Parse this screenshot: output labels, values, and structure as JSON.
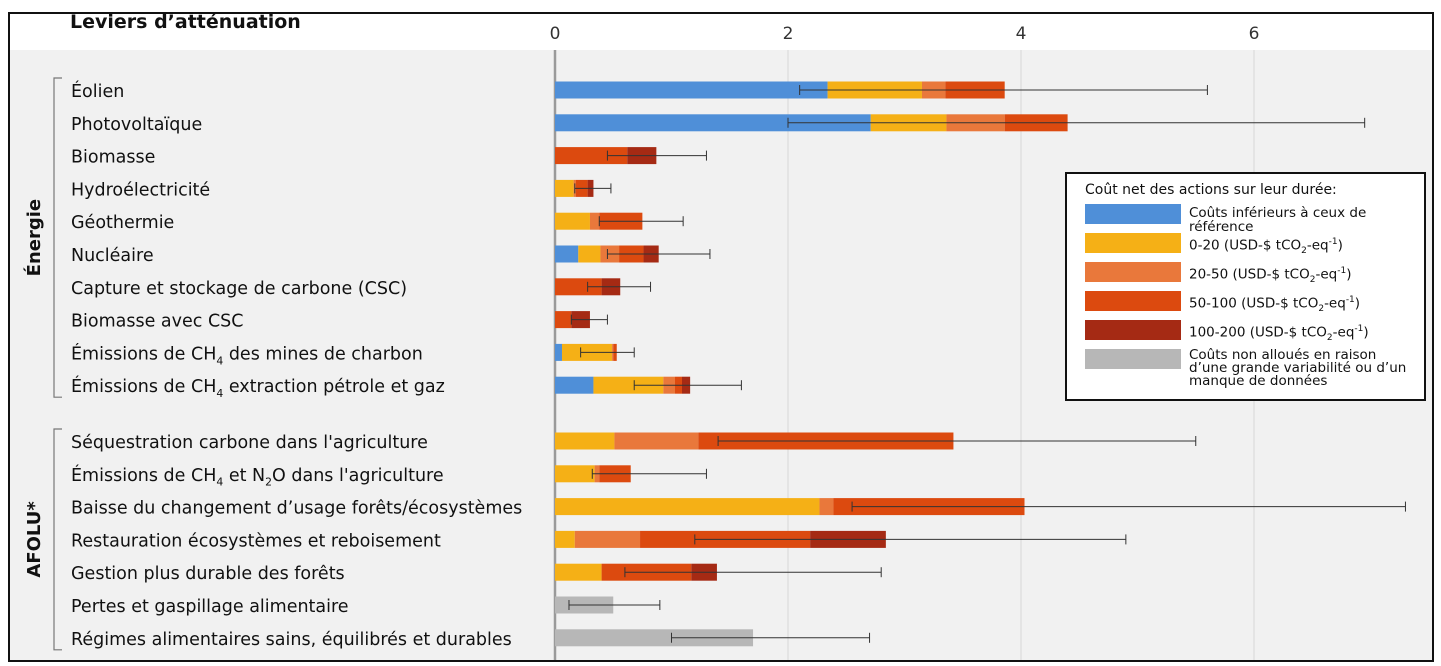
{
  "chart_data": {
    "type": "bar",
    "stacked": true,
    "orientation": "horizontal",
    "title": "Leviers d’atténuation",
    "xlim": [
      0,
      7
    ],
    "x_ticks": [
      "0",
      "2",
      "4",
      "6"
    ],
    "grid": true,
    "groups": [
      {
        "label": "Énergie",
        "first": 0,
        "last": 9
      },
      {
        "label": "AFOLU*",
        "first": 10,
        "last": 16
      }
    ],
    "categories": [
      {
        "parts": [
          {
            "t": "Éolien"
          }
        ]
      },
      {
        "parts": [
          {
            "t": "Photovoltaïque"
          }
        ]
      },
      {
        "parts": [
          {
            "t": "Biomasse"
          }
        ]
      },
      {
        "parts": [
          {
            "t": "Hydroélectricité"
          }
        ]
      },
      {
        "parts": [
          {
            "t": "Géothermie"
          }
        ]
      },
      {
        "parts": [
          {
            "t": "Nucléaire"
          }
        ]
      },
      {
        "parts": [
          {
            "t": "Capture et stockage de carbone (CSC)"
          }
        ]
      },
      {
        "parts": [
          {
            "t": "Biomasse avec CSC"
          }
        ]
      },
      {
        "parts": [
          {
            "t": "Émissions de CH"
          },
          {
            "sub": "4"
          },
          {
            "t": " des mines de charbon"
          }
        ]
      },
      {
        "parts": [
          {
            "t": "Émissions de CH"
          },
          {
            "sub": "4"
          },
          {
            "t": " extraction pétrole et gaz"
          }
        ]
      },
      {
        "parts": [
          {
            "t": "Séquestration carbone dans l'agriculture"
          }
        ]
      },
      {
        "parts": [
          {
            "t": "Émissions de CH"
          },
          {
            "sub": "4"
          },
          {
            "t": " et N"
          },
          {
            "sub": "2"
          },
          {
            "t": "O dans l'agriculture"
          }
        ]
      },
      {
        "parts": [
          {
            "t": "Baisse du changement d’usage forêts/écosystèmes"
          }
        ]
      },
      {
        "parts": [
          {
            "t": "Restauration écosystèmes et reboisement"
          }
        ]
      },
      {
        "parts": [
          {
            "t": "Gestion plus durable des forêts"
          }
        ]
      },
      {
        "parts": [
          {
            "t": "Pertes et gaspillage alimentaire"
          }
        ]
      },
      {
        "parts": [
          {
            "t": "Régimes alimentaires sains, équilibrés et durables"
          }
        ]
      }
    ],
    "series": [
      {
        "name": "Coûts inférieurs à ceux de référence",
        "color": "#4f8fd8",
        "values": [
          2.34,
          2.71,
          0,
          0,
          0,
          0.2,
          0,
          0,
          0.06,
          0.33,
          0,
          0,
          0,
          0,
          0,
          0,
          0
        ]
      },
      {
        "name": "0-20 (USD-$ tCO2-eq-1)",
        "color": "#f5b016",
        "values": [
          0.81,
          0.65,
          0,
          0.16,
          0.3,
          0.19,
          0,
          0,
          0.43,
          0.6,
          0.51,
          0.34,
          2.27,
          0.17,
          0.4,
          0,
          0
        ]
      },
      {
        "name": "20-50 (USD-$ tCO2-eq-1)",
        "color": "#e9783b",
        "values": [
          0.2,
          0.5,
          0,
          0.02,
          0.08,
          0.16,
          0,
          0,
          0.01,
          0.1,
          0.72,
          0.04,
          0.12,
          0.56,
          0,
          0,
          0
        ]
      },
      {
        "name": "50-100 (USD-$ tCO2-eq-1)",
        "color": "#dc4a0f",
        "values": [
          0.51,
          0.54,
          0.62,
          0.1,
          0.37,
          0.21,
          0.4,
          0.14,
          0.03,
          0.06,
          2.19,
          0.27,
          1.64,
          1.46,
          0.77,
          0,
          0
        ]
      },
      {
        "name": "100-200 (USD-$ tCO2-eq-1)",
        "color": "#a52a14",
        "values": [
          0,
          0,
          0.25,
          0.05,
          0,
          0.13,
          0.16,
          0.16,
          0,
          0.07,
          0,
          0,
          0,
          0.65,
          0.22,
          0,
          0
        ]
      },
      {
        "name": "Coûts non alloués en raison d’une grande variabilité ou d’un manque de données",
        "color": "#b7b7b7",
        "values": [
          0,
          0,
          0,
          0,
          0,
          0,
          0,
          0,
          0,
          0,
          0,
          0,
          0,
          0,
          0,
          0.5,
          1.7
        ]
      }
    ],
    "error_bars": [
      [
        2.1,
        5.6
      ],
      [
        2.0,
        6.95
      ],
      [
        0.45,
        1.3
      ],
      [
        0.17,
        0.48
      ],
      [
        0.38,
        1.1
      ],
      [
        0.45,
        1.33
      ],
      [
        0.28,
        0.82
      ],
      [
        0.14,
        0.45
      ],
      [
        0.22,
        0.68
      ],
      [
        0.68,
        1.6
      ],
      [
        1.4,
        5.5
      ],
      [
        0.32,
        1.3
      ],
      [
        2.55,
        7.3
      ],
      [
        1.2,
        4.9
      ],
      [
        0.6,
        2.8
      ],
      [
        0.12,
        0.9
      ],
      [
        1.0,
        2.7
      ]
    ]
  },
  "legend": {
    "title": "Coût net des actions sur leur durée:",
    "items": [
      {
        "parts": [
          {
            "t": "Coûts inférieurs à ceux de référence"
          }
        ]
      },
      {
        "parts": [
          {
            "t": "0-20 (USD-$ tCO"
          },
          {
            "sub": "2"
          },
          {
            "t": "-eq"
          },
          {
            "sup": "-1"
          },
          {
            "t": ")"
          }
        ]
      },
      {
        "parts": [
          {
            "t": "20-50 (USD-$ tCO"
          },
          {
            "sub": "2"
          },
          {
            "t": "-eq"
          },
          {
            "sup": "-1"
          },
          {
            "t": ")"
          }
        ]
      },
      {
        "parts": [
          {
            "t": "50-100 (USD-$ tCO"
          },
          {
            "sub": "2"
          },
          {
            "t": "-eq"
          },
          {
            "sup": "-1"
          },
          {
            "t": ")"
          }
        ]
      },
      {
        "parts": [
          {
            "t": "100-200 (USD-$ tCO"
          },
          {
            "sub": "2"
          },
          {
            "t": "-eq"
          },
          {
            "sup": "-1"
          },
          {
            "t": ")"
          }
        ]
      },
      {
        "lines": [
          "Coûts non alloués en raison",
          "d’une grande variabilité ou d’un",
          "manque de données"
        ]
      }
    ]
  },
  "colors": {
    "axis": "#9a9a9a",
    "grid": "#d6d6d6",
    "error_bar": "#333333",
    "text": "#111111"
  }
}
